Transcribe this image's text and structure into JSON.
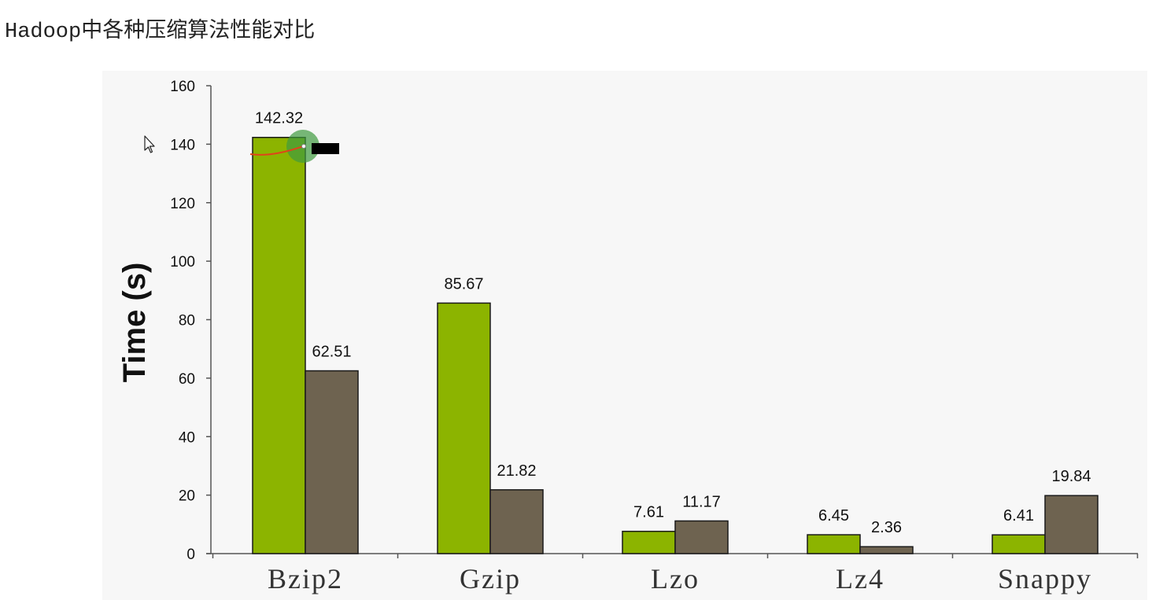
{
  "page": {
    "title_prefix": "Hadoop",
    "title_suffix": "中各种压缩算法性能对比"
  },
  "colors": {
    "compress": "#8cb400",
    "decompress": "#6e6350",
    "bar_stroke": "#1a1a1a",
    "axis": "#555555",
    "panel": "#f7f7f7"
  },
  "chart_data": {
    "type": "bar",
    "title": "",
    "xlabel": "",
    "ylabel": "Time (s)",
    "ylim": [
      0,
      160
    ],
    "yticks": [
      0,
      20,
      40,
      60,
      80,
      100,
      120,
      140,
      160
    ],
    "categories": [
      "Bzip2",
      "Gzip",
      "Lzo",
      "Lz4",
      "Snappy"
    ],
    "series": [
      {
        "values": [
          142.32,
          85.67,
          7.61,
          6.45,
          6.41
        ],
        "labels": [
          "142.32",
          "85.67",
          "7.61",
          "6.45",
          "6.41"
        ]
      },
      {
        "values": [
          62.51,
          21.82,
          11.17,
          2.36,
          19.84
        ],
        "labels": [
          "62.51",
          "21.82",
          "11.17",
          "2.36",
          "19.84"
        ]
      }
    ],
    "grid": false,
    "legend": "none"
  }
}
